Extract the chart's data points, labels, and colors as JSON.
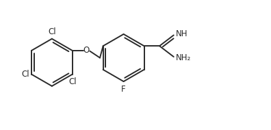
{
  "bg_color": "#ffffff",
  "line_color": "#2a2a2a",
  "line_width": 1.4,
  "font_size": 8.5,
  "figsize": [
    3.96,
    1.9
  ],
  "dpi": 100,
  "xlim": [
    0.0,
    10.5
  ],
  "ylim": [
    0.0,
    5.0
  ]
}
